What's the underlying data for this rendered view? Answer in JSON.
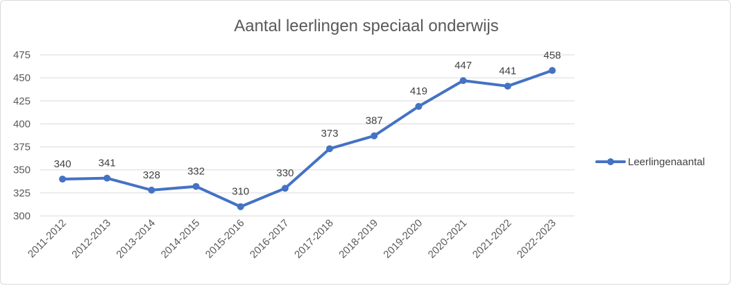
{
  "chart_data": {
    "type": "line",
    "title": "Aantal leerlingen speciaal onderwijs",
    "xlabel": "",
    "ylabel": "",
    "categories": [
      "2011-2012",
      "2012-2013",
      "2013-2014",
      "2014-2015",
      "2015-2016",
      "2016-2017",
      "2017-2018",
      "2018-2019",
      "2019-2020",
      "2020-2021",
      "2021-2022",
      "2022-2023"
    ],
    "series": [
      {
        "name": "Leerlingenaantal",
        "values": [
          340,
          341,
          328,
          332,
          310,
          330,
          373,
          387,
          419,
          447,
          441,
          458
        ]
      }
    ],
    "ylim": [
      300,
      475
    ],
    "yticks": [
      300,
      325,
      350,
      375,
      400,
      425,
      450,
      475
    ],
    "grid": true,
    "legend": "right",
    "data_labels": true,
    "colors": {
      "series": "#4472c4",
      "grid": "#d9d9d9",
      "text": "#595959"
    }
  }
}
